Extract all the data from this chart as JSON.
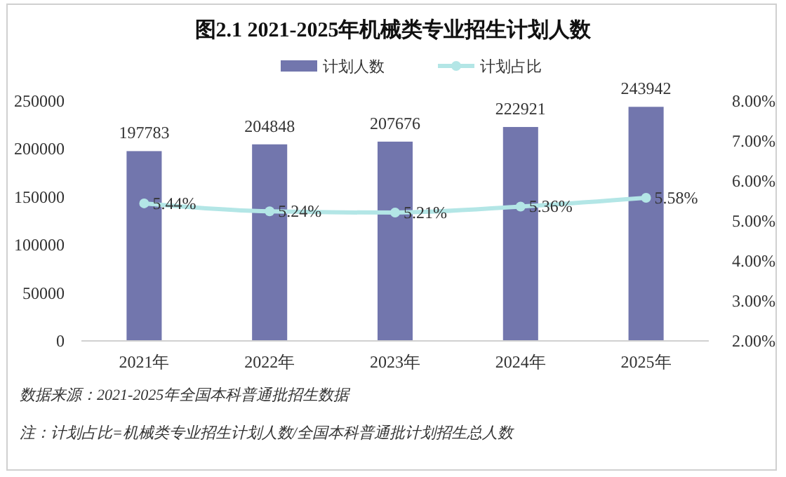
{
  "chart_data": {
    "type": "bar",
    "title": "图2.1  2021-2025年机械类专业招生计划人数",
    "categories": [
      "2021年",
      "2022年",
      "2023年",
      "2024年",
      "2025年"
    ],
    "series": [
      {
        "name": "计划人数",
        "color": "#7276ad",
        "values": [
          197783,
          204848,
          207676,
          222921,
          243942
        ],
        "value_labels": [
          "197783",
          "204848",
          "207676",
          "222921",
          "243942"
        ]
      },
      {
        "name": "计划占比",
        "type": "line",
        "axis": "y2",
        "color": "#b3e6e6",
        "marker": "circle",
        "values": [
          5.44,
          5.24,
          5.21,
          5.36,
          5.58
        ],
        "value_labels": [
          "5.44%",
          "5.24%",
          "5.21%",
          "5.36%",
          "5.58%"
        ]
      }
    ],
    "ylim": [
      0,
      250000
    ],
    "yticks": [
      0,
      50000,
      100000,
      150000,
      200000,
      250000
    ],
    "y2lim": [
      2,
      8
    ],
    "y2ticks": [
      {
        "value": 2,
        "label": "2.00%"
      },
      {
        "value": 3,
        "label": "3.00%"
      },
      {
        "value": 4,
        "label": "4.00%"
      },
      {
        "value": 5,
        "label": "5.00%"
      },
      {
        "value": 6,
        "label": "6.00%"
      },
      {
        "value": 7,
        "label": "7.00%"
      },
      {
        "value": 8,
        "label": "8.00%"
      }
    ],
    "grid": false,
    "legend": "top",
    "annotations": [
      "数据来源：2021-2025年全国本科普通批招生数据",
      "注：计划占比=机械类专业招生计划人数/全国本科普通批计划招生总人数"
    ]
  }
}
